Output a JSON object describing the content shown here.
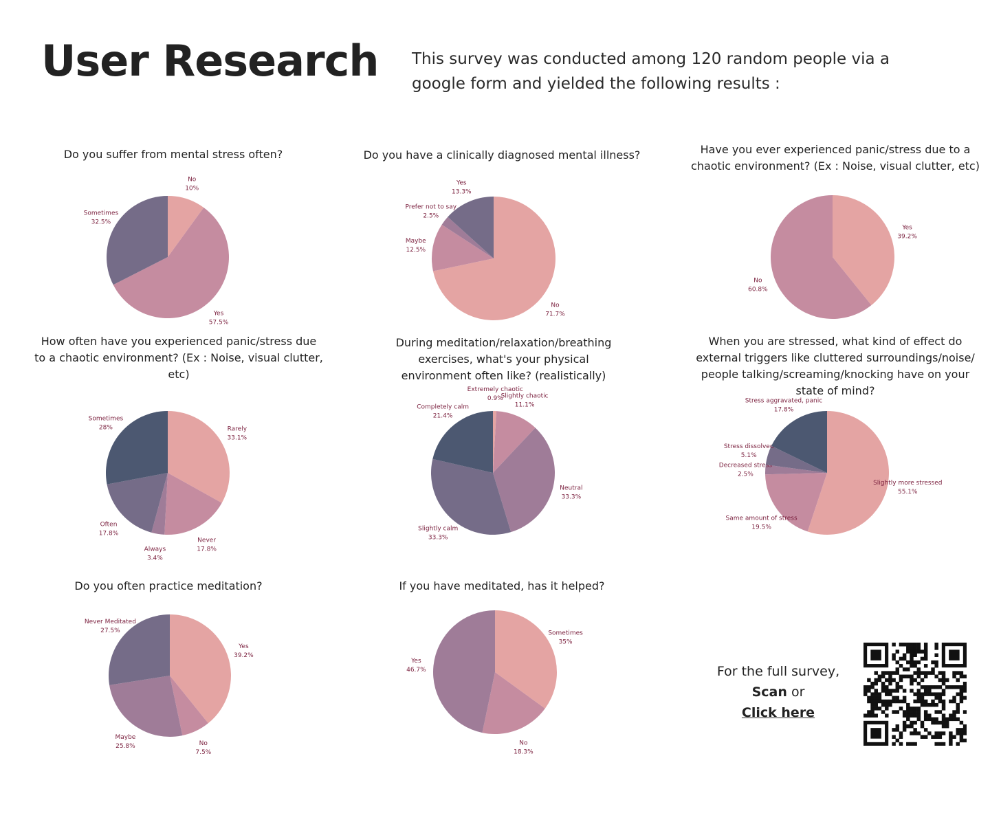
{
  "header": {
    "title": "User Research",
    "intro": "This survey was conducted among 120 random people via  a google form and yielded the following results :"
  },
  "colors": {
    "pink": "#e4a4a3",
    "rose": "#c58ca0",
    "mauve": "#9f7c98",
    "purple": "#756c88",
    "slate": "#4c5871",
    "label": "#7a1f3d"
  },
  "cta": {
    "line1": "For the full survey,",
    "scan": "Scan",
    "or": " or",
    "link": "Click here"
  },
  "chart_data": [
    {
      "type": "pie",
      "title": "Do you suffer from mental stress often?",
      "slices": [
        {
          "label": "No",
          "value": 10,
          "pct": "10%",
          "color": "pink"
        },
        {
          "label": "Yes",
          "value": 57.5,
          "pct": "57.5%",
          "color": "rose"
        },
        {
          "label": "Sometimes",
          "value": 32.5,
          "pct": "32.5%",
          "color": "purple"
        }
      ]
    },
    {
      "type": "pie",
      "title": "Do you have a clinically diagnosed mental illness?",
      "slices": [
        {
          "label": "No",
          "value": 71.7,
          "pct": "71.7%",
          "color": "pink"
        },
        {
          "label": "Maybe",
          "value": 12.5,
          "pct": "12.5%",
          "color": "rose"
        },
        {
          "label": "Prefer not to say",
          "value": 2.5,
          "pct": "2.5%",
          "color": "mauve"
        },
        {
          "label": "Yes",
          "value": 13.3,
          "pct": "13.3%",
          "color": "purple"
        }
      ]
    },
    {
      "type": "pie",
      "title": "Have you ever experienced panic/stress due to a chaotic environment? (Ex : Noise, visual clutter, etc)",
      "slices": [
        {
          "label": "Yes",
          "value": 39.2,
          "pct": "39.2%",
          "color": "pink"
        },
        {
          "label": "No",
          "value": 60.8,
          "pct": "60.8%",
          "color": "rose"
        }
      ]
    },
    {
      "type": "pie",
      "title": "How often have you experienced panic/stress due to a chaotic environment? (Ex : Noise, visual clutter, etc)",
      "slices": [
        {
          "label": "Rarely",
          "value": 33.1,
          "pct": "33.1%",
          "color": "pink"
        },
        {
          "label": "Never",
          "value": 17.8,
          "pct": "17.8%",
          "color": "rose"
        },
        {
          "label": "Always",
          "value": 3.4,
          "pct": "3.4%",
          "color": "mauve"
        },
        {
          "label": "Often",
          "value": 17.8,
          "pct": "17.8%",
          "color": "purple"
        },
        {
          "label": "Sometimes",
          "value": 28,
          "pct": "28%",
          "color": "slate"
        }
      ]
    },
    {
      "type": "pie",
      "title": "During meditation/relaxation/breathing exercises, what's your physical environment often like? (realistically)",
      "slices": [
        {
          "label": "Extremely chaotic",
          "value": 0.9,
          "pct": "0.9%",
          "color": "pink"
        },
        {
          "label": "Slightly chaotic",
          "value": 11.1,
          "pct": "11.1%",
          "color": "rose"
        },
        {
          "label": "Neutral",
          "value": 33.3,
          "pct": "33.3%",
          "color": "mauve"
        },
        {
          "label": "Slightly calm",
          "value": 33.3,
          "pct": "33.3%",
          "color": "purple"
        },
        {
          "label": "Completely calm",
          "value": 21.4,
          "pct": "21.4%",
          "color": "slate"
        }
      ]
    },
    {
      "type": "pie",
      "title": "When you are stressed, what kind of effect do external triggers like cluttered surroundings/noise/ people talking/screaming/knocking have on your state of mind?",
      "slices": [
        {
          "label": "Slightly more stressed",
          "value": 55.1,
          "pct": "55.1%",
          "color": "pink"
        },
        {
          "label": "Same amount of stress",
          "value": 19.5,
          "pct": "19.5%",
          "color": "rose"
        },
        {
          "label": "Decreased stress",
          "value": 2.5,
          "pct": "2.5%",
          "color": "mauve"
        },
        {
          "label": "Stress dissolved",
          "value": 5.1,
          "pct": "5.1%",
          "color": "purple"
        },
        {
          "label": "Stress aggravated, panic",
          "value": 17.8,
          "pct": "17.8%",
          "color": "slate"
        }
      ]
    },
    {
      "type": "pie",
      "title": "Do you often practice meditation?",
      "slices": [
        {
          "label": "Yes",
          "value": 39.2,
          "pct": "39.2%",
          "color": "pink"
        },
        {
          "label": "No",
          "value": 7.5,
          "pct": "7.5%",
          "color": "rose"
        },
        {
          "label": "Maybe",
          "value": 25.8,
          "pct": "25.8%",
          "color": "mauve"
        },
        {
          "label": "Never Meditated",
          "value": 27.5,
          "pct": "27.5%",
          "color": "purple"
        }
      ]
    },
    {
      "type": "pie",
      "title": "If you have meditated, has it helped?",
      "slices": [
        {
          "label": "Sometimes",
          "value": 35,
          "pct": "35%",
          "color": "pink"
        },
        {
          "label": "No",
          "value": 18.3,
          "pct": "18.3%",
          "color": "rose"
        },
        {
          "label": "Yes",
          "value": 46.7,
          "pct": "46.7%",
          "color": "mauve"
        }
      ]
    }
  ]
}
